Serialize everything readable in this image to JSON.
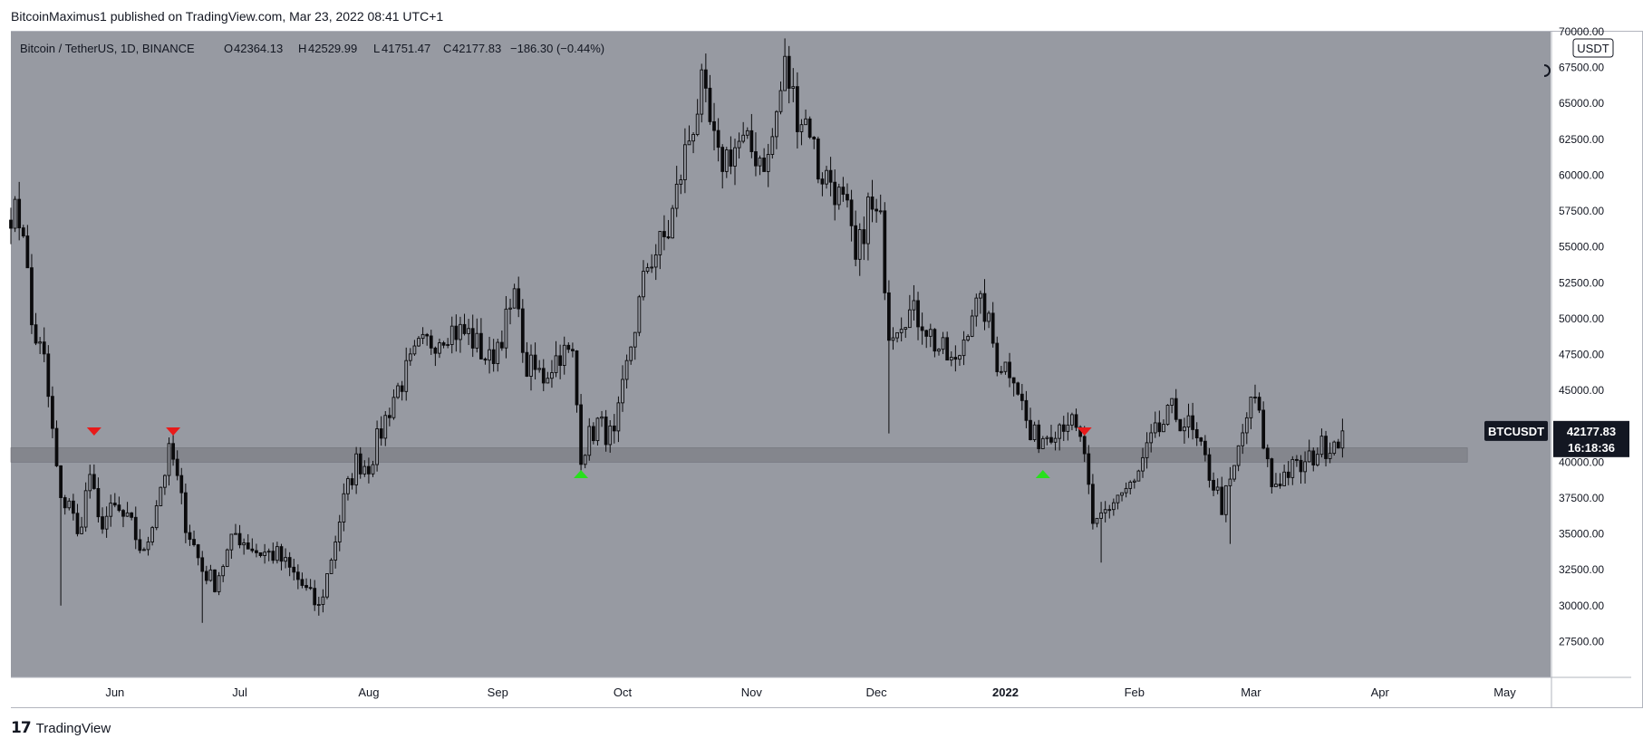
{
  "caption": "BitcoinMaximus1 published on TradingView.com, Mar 23, 2022 08:41 UTC+1",
  "footer": {
    "brand": "TradingView",
    "logo_icon": "tradingview-logo-icon"
  },
  "header": {
    "symbol": "Bitcoin / TetherUS, 1D, BINANCE",
    "o_label": "O",
    "o_value": "42364.13",
    "h_label": "H",
    "h_value": "42529.99",
    "l_label": "L",
    "l_value": "41751.47",
    "c_label": "C",
    "c_value": "42177.83",
    "change": "−186.30 (−0.44%)"
  },
  "price_scale": {
    "currency": "USDT"
  },
  "last_price": {
    "ticker": "BTCUSDT",
    "price": "42177.83",
    "countdown": "16:18:36",
    "value": 42177.83
  },
  "colors": {
    "background": "#979aa2",
    "candle": "#0b0b0d",
    "support_band": "#808289",
    "marker_down": "#e81a1a",
    "marker_up": "#28e01c",
    "axis_text": "#131722",
    "badge_bg": "#131722",
    "badge_text": "#ffffff"
  },
  "chart_data": {
    "type": "candlestick",
    "title": "Bitcoin / TetherUS, 1D, BINANCE",
    "ylim": [
      25000,
      70000
    ],
    "yticks": [
      27500,
      30000,
      32500,
      35000,
      37500,
      40000,
      42500,
      45000,
      47500,
      50000,
      52500,
      55000,
      57500,
      60000,
      62500,
      65000,
      67500,
      70000
    ],
    "ytick_labels": [
      "27500.00",
      "30000.00",
      "32500.00",
      "35000.00",
      "37500.00",
      "40000.00",
      "42500.00",
      "45000.00",
      "47500.00",
      "50000.00",
      "52500.00",
      "55000.00",
      "57500.00",
      "60000.00",
      "62500.00",
      "65000.00",
      "67500.00",
      "70000.00"
    ],
    "xlim": [
      "2021-05-07",
      "2022-05-12"
    ],
    "xticks": [
      {
        "date": "2021-06-01",
        "label": "Jun",
        "bold": false
      },
      {
        "date": "2021-07-01",
        "label": "Jul",
        "bold": false
      },
      {
        "date": "2021-08-01",
        "label": "Aug",
        "bold": false
      },
      {
        "date": "2021-09-01",
        "label": "Sep",
        "bold": false
      },
      {
        "date": "2021-10-01",
        "label": "Oct",
        "bold": false
      },
      {
        "date": "2021-11-01",
        "label": "Nov",
        "bold": false
      },
      {
        "date": "2021-12-01",
        "label": "Dec",
        "bold": false
      },
      {
        "date": "2022-01-01",
        "label": "2022",
        "bold": true
      },
      {
        "date": "2022-02-01",
        "label": "Feb",
        "bold": false
      },
      {
        "date": "2022-03-01",
        "label": "Mar",
        "bold": false
      },
      {
        "date": "2022-04-01",
        "label": "Apr",
        "bold": false
      },
      {
        "date": "2022-05-01",
        "label": "May",
        "bold": false
      }
    ],
    "support_zone": {
      "from": 40000,
      "to": 41000,
      "start": "2021-05-07",
      "end": "2022-04-22"
    },
    "markers": [
      {
        "date": "2021-05-27",
        "price": 42100,
        "direction": "down"
      },
      {
        "date": "2021-06-15",
        "price": 42100,
        "direction": "down"
      },
      {
        "date": "2021-09-21",
        "price": 39200,
        "direction": "up"
      },
      {
        "date": "2022-01-10",
        "price": 39200,
        "direction": "up"
      },
      {
        "date": "2022-01-20",
        "price": 42100,
        "direction": "down"
      }
    ],
    "close_path": [
      [
        "2021-05-07",
        57600
      ],
      [
        "2021-05-10",
        56500
      ],
      [
        "2021-05-12",
        49500
      ],
      [
        "2021-05-15",
        47000
      ],
      [
        "2021-05-19",
        37000
      ],
      [
        "2021-05-21",
        37500
      ],
      [
        "2021-05-23",
        34700
      ],
      [
        "2021-05-26",
        39200
      ],
      [
        "2021-05-28",
        35700
      ],
      [
        "2021-06-01",
        36700
      ],
      [
        "2021-06-05",
        35500
      ],
      [
        "2021-06-08",
        33400
      ],
      [
        "2021-06-11",
        37300
      ],
      [
        "2021-06-14",
        40500
      ],
      [
        "2021-06-15",
        40100
      ],
      [
        "2021-06-18",
        35800
      ],
      [
        "2021-06-22",
        32500
      ],
      [
        "2021-06-25",
        31600
      ],
      [
        "2021-06-30",
        35000
      ],
      [
        "2021-07-05",
        33800
      ],
      [
        "2021-07-10",
        33500
      ],
      [
        "2021-07-15",
        31800
      ],
      [
        "2021-07-20",
        29800
      ],
      [
        "2021-07-22",
        32100
      ],
      [
        "2021-07-26",
        37300
      ],
      [
        "2021-07-29",
        40000
      ],
      [
        "2021-08-01",
        39800
      ],
      [
        "2021-08-07",
        44600
      ],
      [
        "2021-08-13",
        47800
      ],
      [
        "2021-08-20",
        49300
      ],
      [
        "2021-08-25",
        48900
      ],
      [
        "2021-08-30",
        47000
      ],
      [
        "2021-09-06",
        51800
      ],
      [
        "2021-09-07",
        46800
      ],
      [
        "2021-09-12",
        46000
      ],
      [
        "2021-09-16",
        47700
      ],
      [
        "2021-09-19",
        47300
      ],
      [
        "2021-09-21",
        40700
      ],
      [
        "2021-09-25",
        42700
      ],
      [
        "2021-09-29",
        41500
      ],
      [
        "2021-10-03",
        48200
      ],
      [
        "2021-10-07",
        53800
      ],
      [
        "2021-10-12",
        56000
      ],
      [
        "2021-10-16",
        61500
      ],
      [
        "2021-10-20",
        65900
      ],
      [
        "2021-10-24",
        60800
      ],
      [
        "2021-10-29",
        62200
      ],
      [
        "2021-11-05",
        61000
      ],
      [
        "2021-11-09",
        67500
      ],
      [
        "2021-11-12",
        64400
      ],
      [
        "2021-11-15",
        63500
      ],
      [
        "2021-11-17",
        60300
      ],
      [
        "2021-11-20",
        59700
      ],
      [
        "2021-11-24",
        57200
      ],
      [
        "2021-11-26",
        53700
      ],
      [
        "2021-11-29",
        57800
      ],
      [
        "2021-12-02",
        56500
      ],
      [
        "2021-12-04",
        49300
      ],
      [
        "2021-12-08",
        50500
      ],
      [
        "2021-12-12",
        50000
      ],
      [
        "2021-12-15",
        48300
      ],
      [
        "2021-12-20",
        46600
      ],
      [
        "2021-12-24",
        50800
      ],
      [
        "2021-12-27",
        50600
      ],
      [
        "2021-12-30",
        47100
      ],
      [
        "2022-01-03",
        46400
      ],
      [
        "2022-01-07",
        41600
      ],
      [
        "2022-01-10",
        41800
      ],
      [
        "2022-01-13",
        42600
      ],
      [
        "2022-01-16",
        43100
      ],
      [
        "2022-01-20",
        40700
      ],
      [
        "2022-01-22",
        35000
      ],
      [
        "2022-01-24",
        36200
      ],
      [
        "2022-01-28",
        37700
      ],
      [
        "2022-02-01",
        38400
      ],
      [
        "2022-02-05",
        41400
      ],
      [
        "2022-02-10",
        43500
      ],
      [
        "2022-02-14",
        42500
      ],
      [
        "2022-02-18",
        40000
      ],
      [
        "2022-02-22",
        37000
      ],
      [
        "2022-02-24",
        38300
      ],
      [
        "2022-02-28",
        43200
      ],
      [
        "2022-03-02",
        44400
      ],
      [
        "2022-03-06",
        38400
      ],
      [
        "2022-03-10",
        39400
      ],
      [
        "2022-03-14",
        39700
      ],
      [
        "2022-03-17",
        40900
      ],
      [
        "2022-03-20",
        41300
      ],
      [
        "2022-03-23",
        42178
      ]
    ],
    "wick_extremes": [
      {
        "date": "2021-05-19",
        "low": 30000
      },
      {
        "date": "2021-06-22",
        "low": 28800
      },
      {
        "date": "2021-07-20",
        "low": 29300
      },
      {
        "date": "2021-11-10",
        "high": 69000
      },
      {
        "date": "2021-12-04",
        "low": 42000
      },
      {
        "date": "2022-01-24",
        "low": 33000
      },
      {
        "date": "2022-02-24",
        "low": 34300
      },
      {
        "date": "2022-03-02",
        "high": 45400
      }
    ]
  }
}
